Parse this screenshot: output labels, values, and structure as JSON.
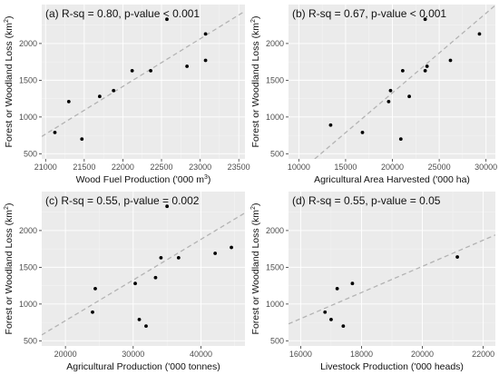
{
  "chart_data": [
    {
      "type": "scatter",
      "annotation": "(a)  R-sq = 0.80, p-value < 0.001",
      "xlabel_html": "Wood Fuel Production ('000 m<tspan dy='-4' font-size='7'>3</tspan><tspan dy='4'>)</tspan>",
      "xlabel": "Wood Fuel Production ('000 m3)",
      "ylabel": "Forest or Woodland Loss (km2)",
      "xlim": [
        20950,
        23580
      ],
      "ylim": [
        430,
        2530
      ],
      "xticks": [
        21000,
        21500,
        22000,
        22500,
        23000,
        23500
      ],
      "xtick_labels": [
        "21000",
        "21500",
        "22000",
        "22500",
        "23000",
        "23500"
      ],
      "yticks": [
        500,
        1000,
        1500,
        2000
      ],
      "ytick_labels": [
        "500",
        "1000",
        "1500",
        "2000"
      ],
      "points": [
        {
          "x": 21120,
          "y": 790
        },
        {
          "x": 21300,
          "y": 1210
        },
        {
          "x": 21470,
          "y": 700
        },
        {
          "x": 21700,
          "y": 1280
        },
        {
          "x": 21880,
          "y": 1360
        },
        {
          "x": 22120,
          "y": 1630
        },
        {
          "x": 22360,
          "y": 1630
        },
        {
          "x": 22570,
          "y": 2330
        },
        {
          "x": 22830,
          "y": 1690
        },
        {
          "x": 23070,
          "y": 1770
        },
        {
          "x": 23070,
          "y": 2130
        }
      ],
      "fit": {
        "x": [
          20950,
          23580
        ],
        "y": [
          735,
          2440
        ]
      },
      "grid": true
    },
    {
      "type": "scatter",
      "annotation": "(b)  R-sq = 0.67, p-value < 0.001",
      "xlabel": "Agricultural Area Harvested ('000 ha)",
      "ylabel": "Forest or Woodland Loss (km2)",
      "xlim": [
        8900,
        31000
      ],
      "ylim": [
        430,
        2530
      ],
      "xticks": [
        10000,
        15000,
        20000,
        25000,
        30000
      ],
      "xtick_labels": [
        "10000",
        "15000",
        "20000",
        "25000",
        "30000"
      ],
      "yticks": [
        500,
        1000,
        1500,
        2000
      ],
      "ytick_labels": [
        "500",
        "1000",
        "1500",
        "2000"
      ],
      "points": [
        {
          "x": 13400,
          "y": 890
        },
        {
          "x": 16800,
          "y": 790
        },
        {
          "x": 19600,
          "y": 1210
        },
        {
          "x": 19800,
          "y": 1360
        },
        {
          "x": 20900,
          "y": 700
        },
        {
          "x": 21100,
          "y": 1630
        },
        {
          "x": 21800,
          "y": 1280
        },
        {
          "x": 23500,
          "y": 1630
        },
        {
          "x": 23700,
          "y": 1690
        },
        {
          "x": 23500,
          "y": 2330
        },
        {
          "x": 26200,
          "y": 1770
        },
        {
          "x": 29300,
          "y": 2130
        }
      ],
      "fit": {
        "x": [
          11700,
          31000
        ],
        "y": [
          430,
          2520
        ]
      },
      "grid": true
    },
    {
      "type": "scatter",
      "annotation": "(c)  R-sq = 0.55, p-value = 0.002",
      "xlabel": "Agricultural Production ('000 tonnes)",
      "ylabel": "Forest or Woodland Loss (km2)",
      "xlim": [
        16500,
        46500
      ],
      "ylim": [
        430,
        2530
      ],
      "xticks": [
        20000,
        30000,
        40000
      ],
      "xtick_labels": [
        "20000",
        "30000",
        "40000"
      ],
      "yticks": [
        500,
        1000,
        1500,
        2000
      ],
      "ytick_labels": [
        "500",
        "1000",
        "1500",
        "2000"
      ],
      "points": [
        {
          "x": 24000,
          "y": 890
        },
        {
          "x": 24400,
          "y": 1210
        },
        {
          "x": 30300,
          "y": 1280
        },
        {
          "x": 30900,
          "y": 790
        },
        {
          "x": 31900,
          "y": 700
        },
        {
          "x": 33300,
          "y": 1360
        },
        {
          "x": 34100,
          "y": 1630
        },
        {
          "x": 35000,
          "y": 2330
        },
        {
          "x": 36700,
          "y": 1630
        },
        {
          "x": 42100,
          "y": 1690
        },
        {
          "x": 44500,
          "y": 1770
        }
      ],
      "fit": {
        "x": [
          16500,
          46500
        ],
        "y": [
          580,
          2240
        ]
      },
      "grid": true
    },
    {
      "type": "scatter",
      "annotation": "(d)  R-sq = 0.55, p-value = 0.05",
      "xlabel": "Livestock Production ('000 heads)",
      "ylabel": "Forest or Woodland Loss (km2)",
      "xlim": [
        15600,
        22400
      ],
      "ylim": [
        430,
        2530
      ],
      "xticks": [
        16000,
        18000,
        20000,
        22000
      ],
      "xtick_labels": [
        "16000",
        "18000",
        "20000",
        "22000"
      ],
      "yticks": [
        500,
        1000,
        1500,
        2000
      ],
      "ytick_labels": [
        "500",
        "1000",
        "1500",
        "2000"
      ],
      "points": [
        {
          "x": 16800,
          "y": 890
        },
        {
          "x": 17000,
          "y": 790
        },
        {
          "x": 17200,
          "y": 1210
        },
        {
          "x": 17400,
          "y": 700
        },
        {
          "x": 17700,
          "y": 1280
        },
        {
          "x": 21150,
          "y": 1640
        }
      ],
      "fit": {
        "x": [
          15600,
          22400
        ],
        "y": [
          730,
          1940
        ]
      },
      "grid": true
    }
  ]
}
